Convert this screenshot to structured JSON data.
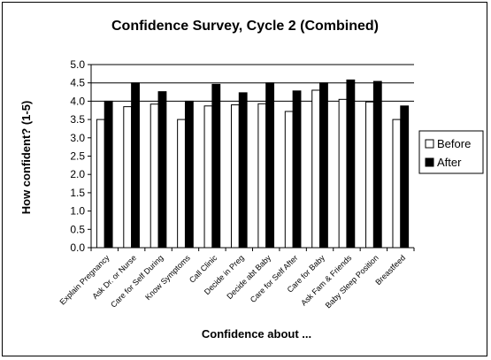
{
  "chart_data": {
    "type": "bar",
    "title": "Confidence Survey, Cycle 2 (Combined)",
    "xlabel": "Confidence about ...",
    "ylabel": "How confident? (1-5)",
    "ylim": [
      0,
      5
    ],
    "yticks": [
      "0.0",
      "0.5",
      "1.0",
      "1.5",
      "2.0",
      "2.5",
      "3.0",
      "3.5",
      "4.0",
      "4.5",
      "5.0"
    ],
    "grid": "major gridlines at 4.0, 4.5 and 5.0",
    "legend_position": "right",
    "categories": [
      "Explain Pregnancy",
      "Ask Dr. or Nurse",
      "Care for Self During",
      "Know Symptoms",
      "Call Clinic",
      "Decide in Preg",
      "Decide abt Baby",
      "Care for Self After",
      "Care for Baby",
      "Ask Fam & Friends",
      "Baby Sleep Position",
      "Breastfeed"
    ],
    "series": [
      {
        "name": "Before",
        "color": "#ffffff",
        "values": [
          3.5,
          3.85,
          3.92,
          3.5,
          3.87,
          3.9,
          3.93,
          3.72,
          4.3,
          4.05,
          3.98,
          3.5
        ]
      },
      {
        "name": "After",
        "color": "#000000",
        "values": [
          4.0,
          4.5,
          4.26,
          4.0,
          4.46,
          4.23,
          4.5,
          4.28,
          4.5,
          4.58,
          4.54,
          3.87
        ]
      }
    ]
  }
}
